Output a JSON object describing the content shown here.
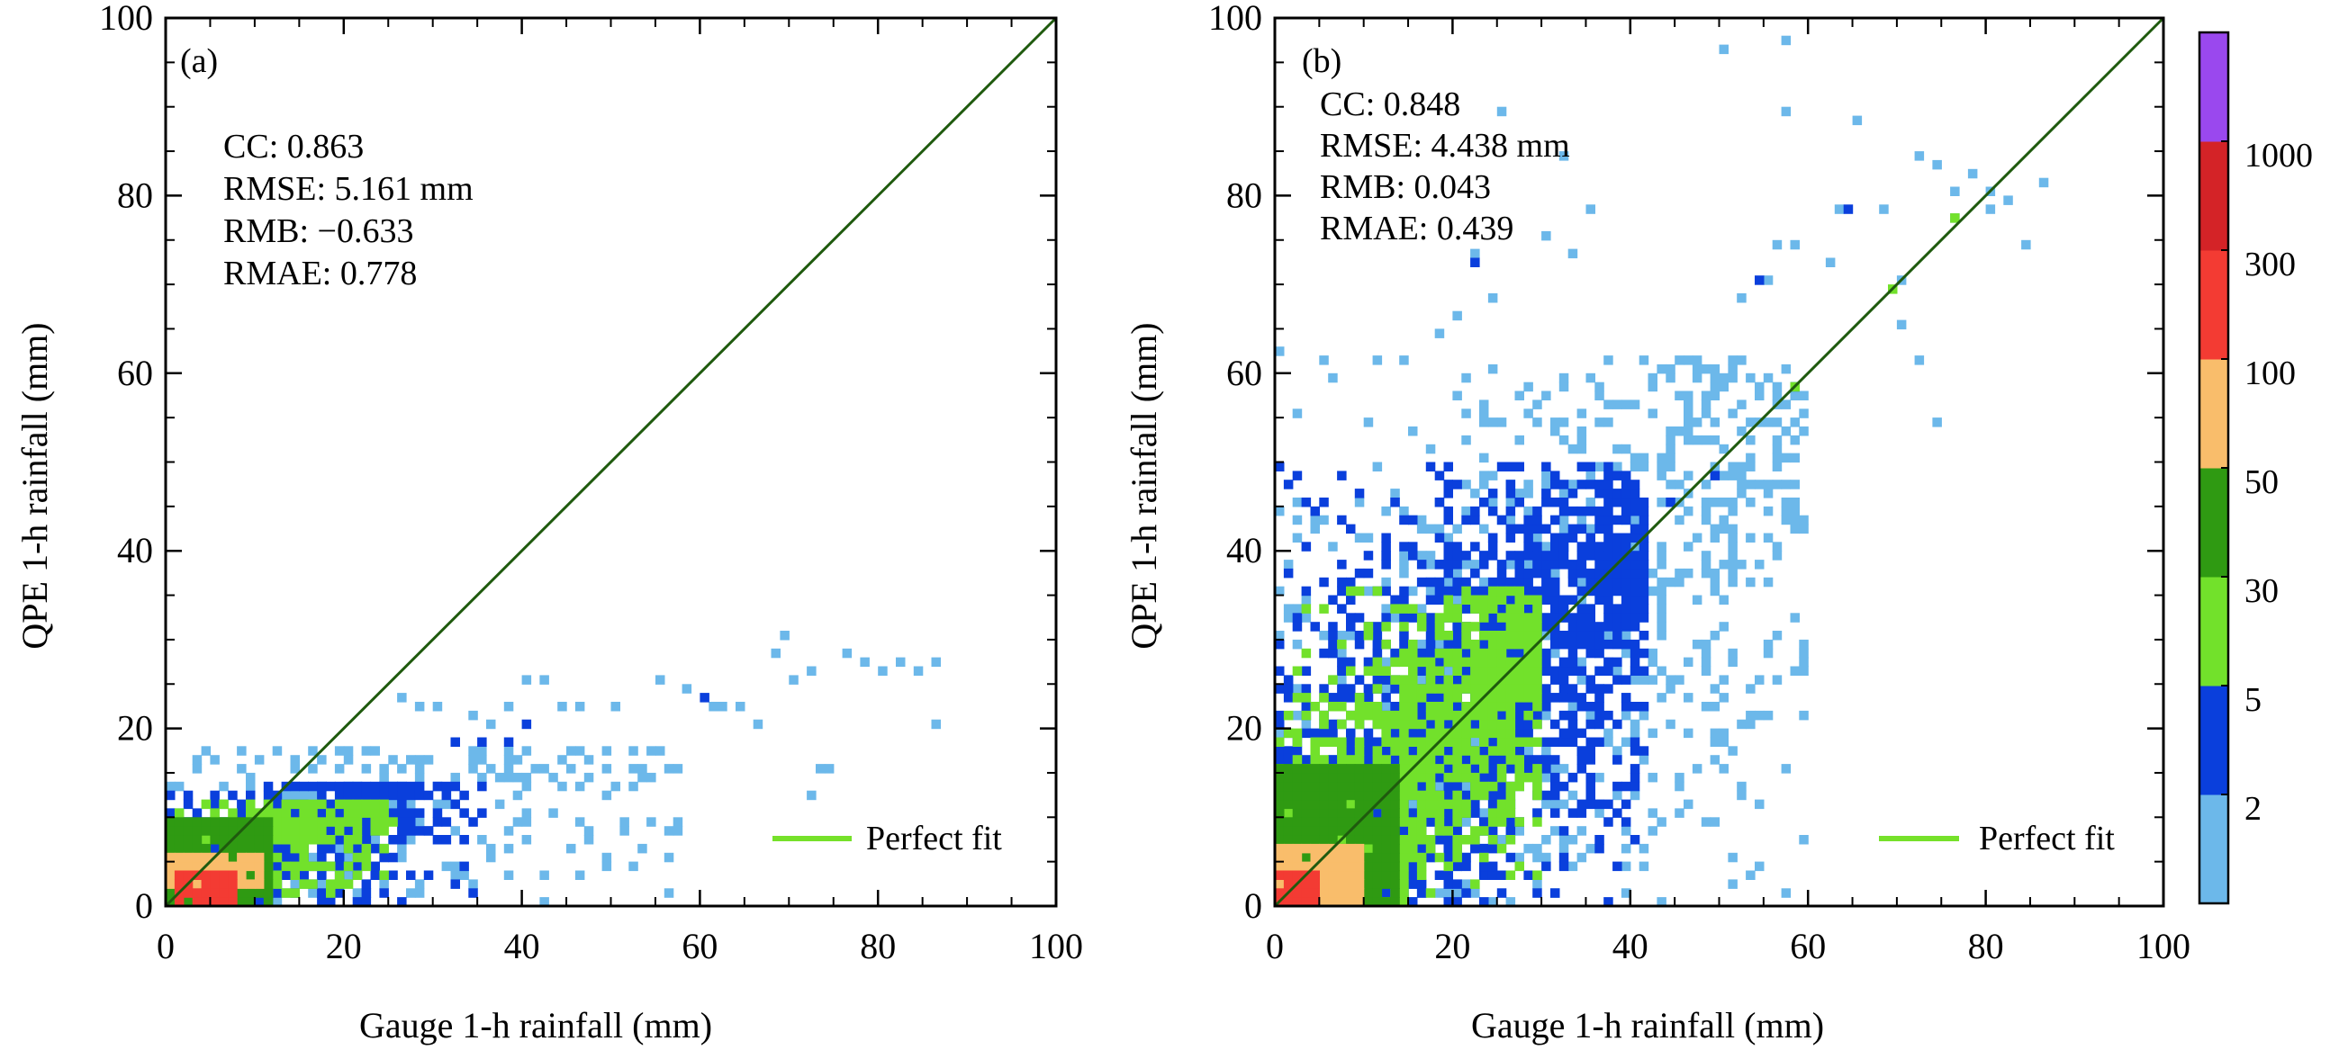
{
  "chart_data": [
    {
      "type": "heatmap",
      "panel_label": "(a)",
      "xlabel": "Gauge 1-h rainfall (mm)",
      "ylabel": "QPE 1-h rainfall (mm)",
      "xlim": [
        0,
        100
      ],
      "ylim": [
        0,
        100
      ],
      "x_ticks": [
        "0",
        "20",
        "40",
        "60",
        "80",
        "100"
      ],
      "y_ticks": [
        "0",
        "20",
        "40",
        "60",
        "80",
        "100"
      ],
      "stats": [
        "CC: 0.863",
        "RMSE: 5.161 mm",
        "RMB: −0.633",
        "RMAE: 0.778"
      ],
      "legend": "Perfect fit",
      "perfect_fit": {
        "x": [
          0,
          100
        ],
        "y": [
          0,
          100
        ]
      },
      "clusters": [
        {
          "level": 0,
          "x": [
            0,
            60
          ],
          "y": [
            0,
            18
          ],
          "points": [
            [
              62,
              22
            ],
            [
              64,
              22
            ],
            [
              68,
              28
            ],
            [
              69,
              30
            ],
            [
              72,
              26
            ],
            [
              76,
              28
            ],
            [
              78,
              27
            ],
            [
              80,
              26
            ],
            [
              82,
              27
            ],
            [
              84,
              26
            ],
            [
              86,
              27
            ],
            [
              86,
              20
            ],
            [
              70,
              25
            ],
            [
              72,
              12
            ],
            [
              73,
              15
            ],
            [
              74,
              15
            ],
            [
              66,
              20
            ],
            [
              61,
              22
            ],
            [
              58,
              24
            ],
            [
              55,
              25
            ],
            [
              50,
              22
            ],
            [
              46,
              22
            ],
            [
              44,
              22
            ],
            [
              40,
              25
            ],
            [
              42,
              25
            ],
            [
              38,
              22
            ],
            [
              36,
              20
            ],
            [
              34,
              21
            ],
            [
              30,
              22
            ],
            [
              28,
              22
            ],
            [
              26,
              23
            ]
          ]
        },
        {
          "level": 1,
          "x": [
            0,
            36
          ],
          "y": [
            0,
            14
          ],
          "points": [
            [
              60,
              23
            ],
            [
              40,
              20
            ],
            [
              38,
              18
            ],
            [
              35,
              18
            ],
            [
              32,
              18
            ]
          ]
        },
        {
          "level": 2,
          "x": [
            1,
            26
          ],
          "y": [
            1,
            12
          ],
          "points": []
        },
        {
          "level": 3,
          "x": [
            0,
            12
          ],
          "y": [
            0,
            10
          ],
          "points": []
        },
        {
          "level": 4,
          "x": [
            0,
            11
          ],
          "y": [
            2,
            6
          ],
          "points": []
        },
        {
          "level": 5,
          "x": [
            1,
            8
          ],
          "y": [
            0,
            4
          ],
          "points": []
        }
      ]
    },
    {
      "type": "heatmap",
      "panel_label": "(b)",
      "xlabel": "Gauge 1-h rainfall (mm)",
      "ylabel": "QPE 1-h rainfall (mm)",
      "xlim": [
        0,
        100
      ],
      "ylim": [
        0,
        100
      ],
      "x_ticks": [
        "0",
        "20",
        "40",
        "60",
        "80",
        "100"
      ],
      "y_ticks": [
        "0",
        "20",
        "40",
        "60",
        "80",
        "100"
      ],
      "stats": [
        "CC: 0.848",
        "RMSE: 4.438 mm",
        "RMB: 0.043",
        "RMAE: 0.439"
      ],
      "legend": "Perfect fit",
      "perfect_fit": {
        "x": [
          0,
          100
        ],
        "y": [
          0,
          100
        ]
      },
      "clusters": [
        {
          "level": 0,
          "x": [
            0,
            60
          ],
          "y": [
            0,
            62
          ],
          "points": [
            [
              50,
              96
            ],
            [
              57,
              97
            ],
            [
              57,
              89
            ],
            [
              65,
              88
            ],
            [
              72,
              84
            ],
            [
              74,
              83
            ],
            [
              76,
              80
            ],
            [
              78,
              82
            ],
            [
              80,
              80
            ],
            [
              82,
              79
            ],
            [
              86,
              81
            ],
            [
              84,
              74
            ],
            [
              76,
              77
            ],
            [
              70,
              70
            ],
            [
              72,
              61
            ],
            [
              74,
              54
            ],
            [
              70,
              65
            ],
            [
              80,
              78
            ],
            [
              63,
              78
            ],
            [
              62,
              72
            ],
            [
              68,
              78
            ],
            [
              58,
              74
            ],
            [
              56,
              74
            ],
            [
              55,
              70
            ],
            [
              52,
              68
            ],
            [
              25,
              89
            ],
            [
              32,
              84
            ],
            [
              30,
              75
            ],
            [
              35,
              78
            ],
            [
              33,
              73
            ],
            [
              22,
              73
            ],
            [
              20,
              66
            ],
            [
              18,
              64
            ],
            [
              24,
              68
            ],
            [
              0,
              62
            ],
            [
              5,
              61
            ],
            [
              2,
              45
            ],
            [
              4,
              42
            ],
            [
              0,
              30
            ]
          ]
        },
        {
          "level": 1,
          "x": [
            0,
            42
          ],
          "y": [
            0,
            50
          ],
          "points": [
            [
              64,
              78
            ],
            [
              54,
              70
            ],
            [
              58,
              58
            ],
            [
              49,
              48
            ],
            [
              44,
              45
            ],
            [
              22,
              72
            ]
          ]
        },
        {
          "level": 2,
          "x": [
            0,
            30
          ],
          "y": [
            0,
            36
          ],
          "points": [
            [
              69,
              69
            ],
            [
              76,
              77
            ],
            [
              58,
              58
            ]
          ]
        },
        {
          "level": 3,
          "x": [
            0,
            14
          ],
          "y": [
            0,
            16
          ],
          "points": []
        },
        {
          "level": 4,
          "x": [
            0,
            10
          ],
          "y": [
            0,
            7
          ],
          "points": []
        },
        {
          "level": 5,
          "x": [
            0,
            5
          ],
          "y": [
            0,
            4
          ],
          "points": []
        }
      ]
    }
  ],
  "colorbar": {
    "colors": [
      "#6cb8ea",
      "#0a3fdc",
      "#72e12b",
      "#2f9a12",
      "#f9bd6b",
      "#f33b33",
      "#d42327",
      "#9a48ee"
    ],
    "labels": [
      "2",
      "5",
      "30",
      "50",
      "100",
      "300",
      "1000"
    ]
  },
  "colors": {
    "perfect_fit_line": "#76e12a",
    "identity_line": "#1f5a0e"
  }
}
